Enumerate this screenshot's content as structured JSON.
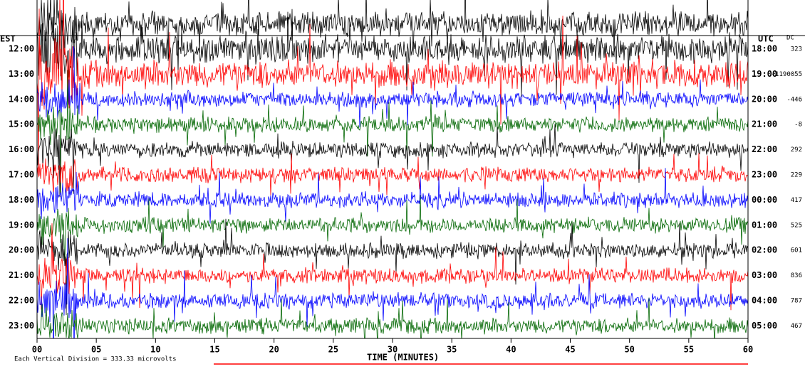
{
  "header": {
    "left_label": "EST",
    "right_label": "UTC",
    "dc_label": "DC"
  },
  "rows": [
    {
      "est": "12:00",
      "utc": "18:00",
      "dc": "323",
      "color": "#000000"
    },
    {
      "est": "13:00",
      "utc": "19:00",
      "dc": "-1190055",
      "color": "#ff0000"
    },
    {
      "est": "14:00",
      "utc": "20:00",
      "dc": "-446",
      "color": "#0000ff"
    },
    {
      "est": "15:00",
      "utc": "21:00",
      "dc": "-8",
      "color": "#006600"
    },
    {
      "est": "16:00",
      "utc": "22:00",
      "dc": "292",
      "color": "#000000"
    },
    {
      "est": "17:00",
      "utc": "23:00",
      "dc": "229",
      "color": "#ff0000"
    },
    {
      "est": "18:00",
      "utc": "00:00",
      "dc": "417",
      "color": "#0000ff"
    },
    {
      "est": "19:00",
      "utc": "01:00",
      "dc": "525",
      "color": "#006600"
    },
    {
      "est": "20:00",
      "utc": "02:00",
      "dc": "601",
      "color": "#000000"
    },
    {
      "est": "21:00",
      "utc": "03:00",
      "dc": "836",
      "color": "#ff0000"
    },
    {
      "est": "22:00",
      "utc": "04:00",
      "dc": "787",
      "color": "#0000ff"
    },
    {
      "est": "23:00",
      "utc": "05:00",
      "dc": "467",
      "color": "#006600"
    }
  ],
  "x_axis": {
    "label": "TIME (MINUTES)",
    "ticks": [
      "00",
      "05",
      "10",
      "15",
      "20",
      "25",
      "30",
      "35",
      "40",
      "45",
      "50",
      "55",
      "60"
    ]
  },
  "footer": "Each Vertical Division = 333.33 microvolts"
}
